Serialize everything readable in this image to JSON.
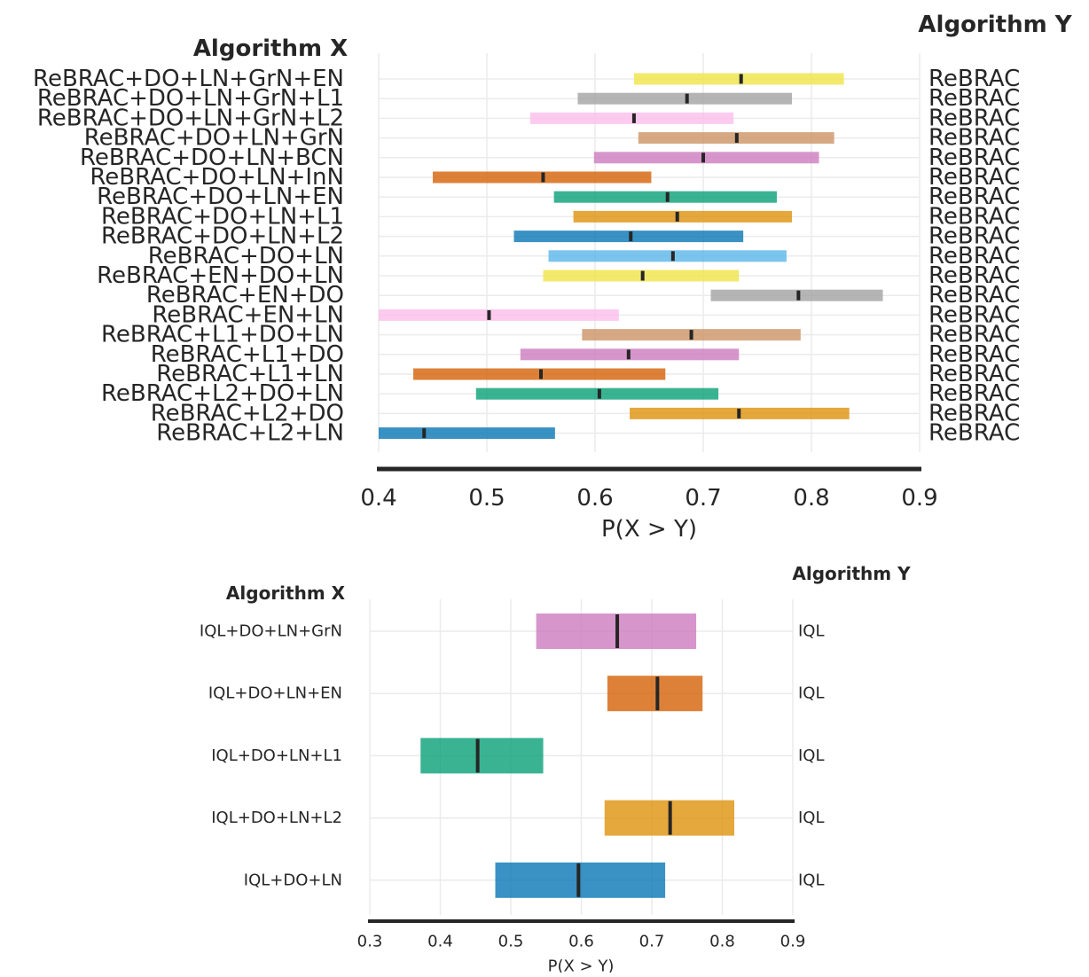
{
  "chart_data": [
    {
      "type": "interval",
      "xlabel": "P(X > Y)",
      "left_header": "Algorithm X",
      "right_header": "Algorithm Y",
      "xlim": [
        0.4,
        0.9
      ],
      "xticks": [
        0.4,
        0.5,
        0.6,
        0.7,
        0.8,
        0.9
      ],
      "xtick_labels": [
        "0.4",
        "0.5",
        "0.6",
        "0.7",
        "0.8",
        "0.9"
      ],
      "grid": true,
      "rows": [
        {
          "x": "ReBRAC+DO+LN+GrN+EN",
          "y": "ReBRAC",
          "low": 0.636,
          "mid": 0.735,
          "high": 0.83,
          "color": "#f0e442"
        },
        {
          "x": "ReBRAC+DO+LN+GrN+L1",
          "y": "ReBRAC",
          "low": 0.584,
          "mid": 0.685,
          "high": 0.782,
          "color": "#a0a0a0"
        },
        {
          "x": "ReBRAC+DO+LN+GrN+L2",
          "y": "ReBRAC",
          "low": 0.54,
          "mid": 0.636,
          "high": 0.728,
          "color": "#fbbceb"
        },
        {
          "x": "ReBRAC+DO+LN+GrN",
          "y": "ReBRAC",
          "low": 0.64,
          "mid": 0.731,
          "high": 0.821,
          "color": "#ca9161"
        },
        {
          "x": "ReBRAC+DO+LN+BCN",
          "y": "ReBRAC",
          "low": 0.599,
          "mid": 0.7,
          "high": 0.807,
          "color": "#cc78bc"
        },
        {
          "x": "ReBRAC+DO+LN+InN",
          "y": "ReBRAC",
          "low": 0.45,
          "mid": 0.552,
          "high": 0.652,
          "color": "#d55e00"
        },
        {
          "x": "ReBRAC+DO+LN+EN",
          "y": "ReBRAC",
          "low": 0.562,
          "mid": 0.667,
          "high": 0.768,
          "color": "#029e73"
        },
        {
          "x": "ReBRAC+DO+LN+L1",
          "y": "ReBRAC",
          "low": 0.58,
          "mid": 0.676,
          "high": 0.782,
          "color": "#de8f05"
        },
        {
          "x": "ReBRAC+DO+LN+L2",
          "y": "ReBRAC",
          "low": 0.525,
          "mid": 0.633,
          "high": 0.737,
          "color": "#0173b2"
        },
        {
          "x": "ReBRAC+DO+LN",
          "y": "ReBRAC",
          "low": 0.557,
          "mid": 0.672,
          "high": 0.777,
          "color": "#56b4e9"
        },
        {
          "x": "ReBRAC+EN+DO+LN",
          "y": "ReBRAC",
          "low": 0.552,
          "mid": 0.644,
          "high": 0.733,
          "color": "#f0e442"
        },
        {
          "x": "ReBRAC+EN+DO",
          "y": "ReBRAC",
          "low": 0.707,
          "mid": 0.788,
          "high": 0.866,
          "color": "#a0a0a0"
        },
        {
          "x": "ReBRAC+EN+LN",
          "y": "ReBRAC",
          "low": 0.4,
          "mid": 0.502,
          "high": 0.622,
          "color": "#fbbceb"
        },
        {
          "x": "ReBRAC+L1+DO+LN",
          "y": "ReBRAC",
          "low": 0.588,
          "mid": 0.689,
          "high": 0.79,
          "color": "#ca9161"
        },
        {
          "x": "ReBRAC+L1+DO",
          "y": "ReBRAC",
          "low": 0.531,
          "mid": 0.631,
          "high": 0.733,
          "color": "#cc78bc"
        },
        {
          "x": "ReBRAC+L1+LN",
          "y": "ReBRAC",
          "low": 0.432,
          "mid": 0.55,
          "high": 0.665,
          "color": "#d55e00"
        },
        {
          "x": "ReBRAC+L2+DO+LN",
          "y": "ReBRAC",
          "low": 0.49,
          "mid": 0.604,
          "high": 0.714,
          "color": "#029e73"
        },
        {
          "x": "ReBRAC+L2+DO",
          "y": "ReBRAC",
          "low": 0.632,
          "mid": 0.733,
          "high": 0.835,
          "color": "#de8f05"
        },
        {
          "x": "ReBRAC+L2+LN",
          "y": "ReBRAC",
          "low": 0.4,
          "mid": 0.442,
          "high": 0.563,
          "color": "#0173b2"
        }
      ]
    },
    {
      "type": "interval",
      "xlabel": "P(X > Y)",
      "left_header": "Algorithm X",
      "right_header": "Algorithm Y",
      "xlim": [
        0.3,
        0.9
      ],
      "xticks": [
        0.3,
        0.4,
        0.5,
        0.6,
        0.7,
        0.8,
        0.9
      ],
      "xtick_labels": [
        "0.3",
        "0.4",
        "0.5",
        "0.6",
        "0.7",
        "0.8",
        "0.9"
      ],
      "grid": true,
      "rows": [
        {
          "x": "IQL+DO+LN+GrN",
          "y": "IQL",
          "low": 0.536,
          "mid": 0.651,
          "high": 0.763,
          "color": "#cc78bc"
        },
        {
          "x": "IQL+DO+LN+EN",
          "y": "IQL",
          "low": 0.637,
          "mid": 0.708,
          "high": 0.772,
          "color": "#d55e00"
        },
        {
          "x": "IQL+DO+LN+L1",
          "y": "IQL",
          "low": 0.372,
          "mid": 0.453,
          "high": 0.546,
          "color": "#029e73"
        },
        {
          "x": "IQL+DO+LN+L2",
          "y": "IQL",
          "low": 0.633,
          "mid": 0.726,
          "high": 0.817,
          "color": "#de8f05"
        },
        {
          "x": "IQL+DO+LN",
          "y": "IQL",
          "low": 0.478,
          "mid": 0.596,
          "high": 0.719,
          "color": "#0173b2"
        }
      ]
    }
  ]
}
